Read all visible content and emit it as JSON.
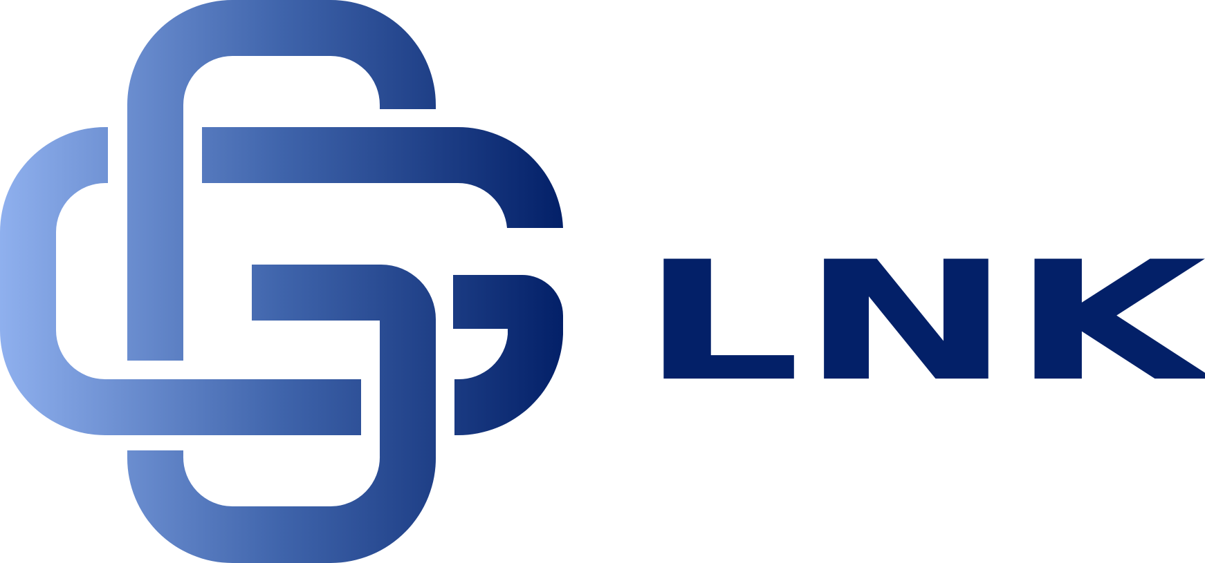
{
  "logo": {
    "wordmark": "LNK",
    "colors": {
      "gradient_start": "#8fb0ee",
      "gradient_mid": "#3f64ab",
      "gradient_end": "#032068",
      "wordmark": "#032068"
    },
    "emblem_icon": "interlocked-chain-links-icon"
  }
}
